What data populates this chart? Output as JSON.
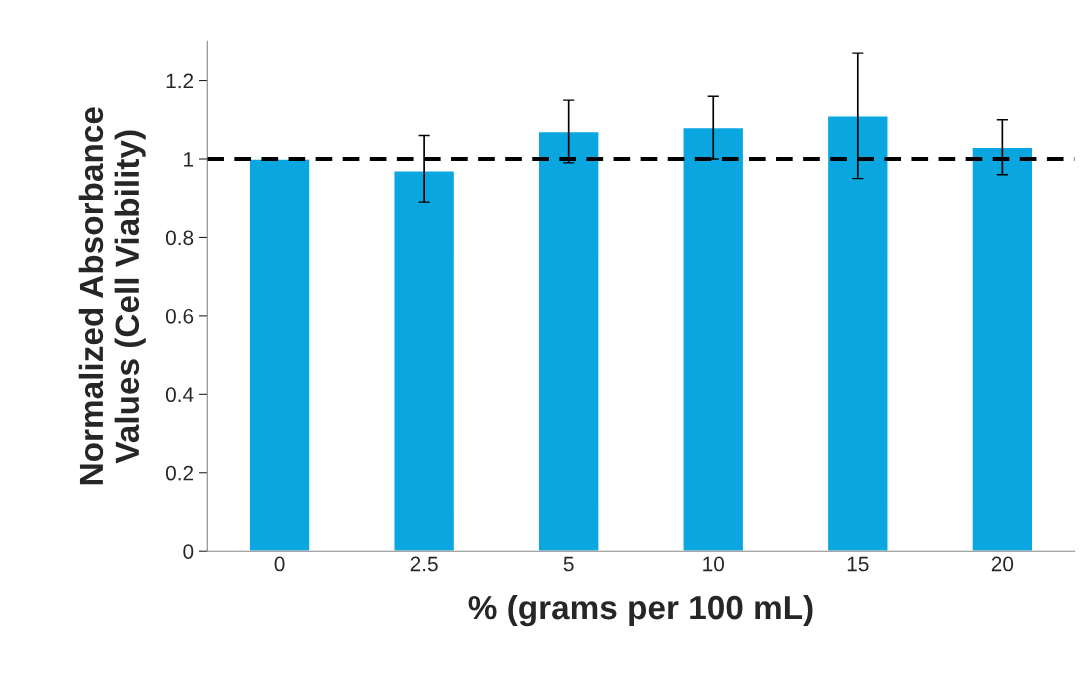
{
  "chart_data": {
    "type": "bar",
    "xlabel": "% (grams per 100 mL)",
    "ylabel": "Normalized Absorbance\nValues (Cell Viability)",
    "categories": [
      "0",
      "2.5",
      "5",
      "10",
      "15",
      "20"
    ],
    "values": [
      1.0,
      0.97,
      1.07,
      1.08,
      1.11,
      1.03
    ],
    "errors": [
      null,
      [
        0.89,
        1.06
      ],
      [
        0.99,
        1.15
      ],
      [
        1.0,
        1.16
      ],
      [
        0.95,
        1.27
      ],
      [
        0.96,
        1.1
      ]
    ],
    "color": "#0aa6e0",
    "ylim": [
      0,
      1.3
    ],
    "yticks": [
      0,
      0.2,
      0.4,
      0.6,
      0.8,
      1,
      1.2
    ],
    "ref_lines": [
      {
        "axis": "y",
        "value": 1,
        "color": "#000000",
        "line_style": "dashed"
      }
    ],
    "grid": false
  }
}
